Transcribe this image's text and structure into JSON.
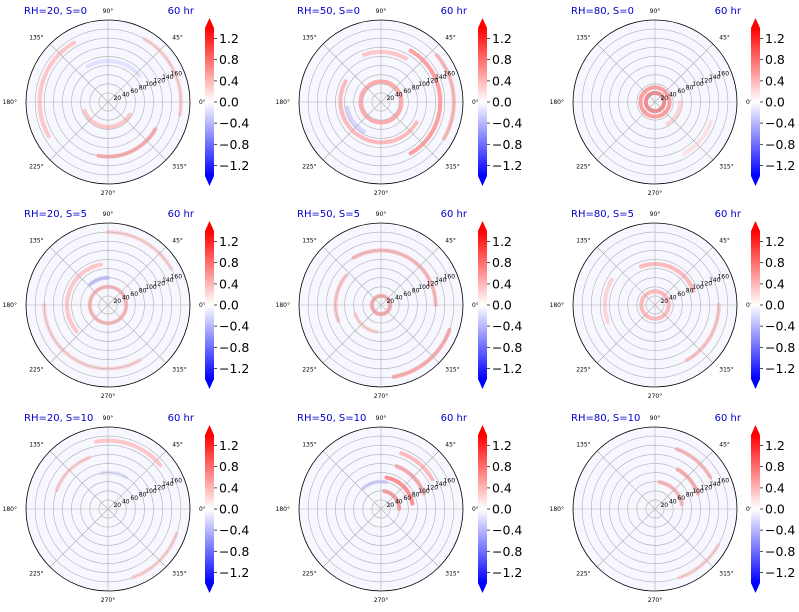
{
  "figure": {
    "time_label": "60 hr",
    "colors": {
      "title": "#0000cc",
      "grid": "#b0b0b0",
      "frame": "#000000",
      "background": "#f7f7ff"
    }
  },
  "colorbar": {
    "ticks": [
      "1.2",
      "0.8",
      "0.4",
      "0.0",
      "−0.4",
      "−0.8",
      "−1.2"
    ],
    "tick_values": [
      1.2,
      0.8,
      0.4,
      0.0,
      -0.4,
      -0.8,
      -1.2
    ],
    "range": [
      -1.4,
      1.4
    ],
    "colormap": "bwr",
    "extend": "both"
  },
  "chart_data": [
    {
      "type": "heatmap",
      "projection": "polar",
      "title": "RH=20, S=0",
      "time": "60 hr",
      "angle_ticks": [
        "0°",
        "45°",
        "90°",
        "135°",
        "180°",
        "225°",
        "270°",
        "315°"
      ],
      "radial_ticks": [
        20,
        40,
        60,
        80,
        100,
        120,
        140,
        160
      ],
      "rmax": 180,
      "features": [
        {
          "r": 55,
          "a0": 200,
          "a1": 330,
          "value": 0.4
        },
        {
          "r": 120,
          "a0": 260,
          "a1": 330,
          "value": 0.6
        },
        {
          "r": 150,
          "a0": 120,
          "a1": 210,
          "value": 0.4
        },
        {
          "r": 160,
          "a0": 350,
          "a1": 420,
          "value": 0.3
        },
        {
          "r": 90,
          "a0": 40,
          "a1": 120,
          "value": -0.2
        }
      ]
    },
    {
      "type": "heatmap",
      "projection": "polar",
      "title": "RH=50, S=0",
      "time": "60 hr",
      "angle_ticks": [
        "0°",
        "45°",
        "90°",
        "135°",
        "180°",
        "225°",
        "270°",
        "315°"
      ],
      "radial_ticks": [
        20,
        40,
        60,
        80,
        100,
        120,
        140,
        160
      ],
      "rmax": 180,
      "features": [
        {
          "r": 45,
          "a0": 0,
          "a1": 360,
          "value": 0.6
        },
        {
          "r": 90,
          "a0": 150,
          "a1": 330,
          "value": 0.5
        },
        {
          "r": 130,
          "a0": 300,
          "a1": 420,
          "value": 0.7
        },
        {
          "r": 160,
          "a0": 330,
          "a1": 400,
          "value": 0.5
        },
        {
          "r": 110,
          "a0": 60,
          "a1": 110,
          "value": 0.4
        },
        {
          "r": 75,
          "a0": 190,
          "a1": 240,
          "value": -0.3
        }
      ]
    },
    {
      "type": "heatmap",
      "projection": "polar",
      "title": "RH=80, S=0",
      "time": "60 hr",
      "angle_ticks": [
        "0°",
        "45°",
        "90°",
        "135°",
        "180°",
        "225°",
        "270°",
        "315°"
      ],
      "radial_ticks": [
        20,
        40,
        60,
        80,
        100,
        120,
        140,
        160
      ],
      "rmax": 180,
      "features": [
        {
          "r": 20,
          "a0": 0,
          "a1": 360,
          "value": 0.9
        },
        {
          "r": 32,
          "a0": 0,
          "a1": 360,
          "value": 0.7
        },
        {
          "r": 55,
          "a0": 300,
          "a1": 360,
          "value": 0.3
        },
        {
          "r": 130,
          "a0": 300,
          "a1": 340,
          "value": 0.2
        }
      ]
    },
    {
      "type": "heatmap",
      "projection": "polar",
      "title": "RH=20, S=5",
      "time": "60 hr",
      "angle_ticks": [
        "0°",
        "45°",
        "90°",
        "135°",
        "180°",
        "225°",
        "270°",
        "315°"
      ],
      "radial_ticks": [
        20,
        40,
        60,
        80,
        100,
        120,
        140,
        160
      ],
      "rmax": 180,
      "features": [
        {
          "r": 40,
          "a0": 0,
          "a1": 360,
          "value": 0.5
        },
        {
          "r": 90,
          "a0": 100,
          "a1": 220,
          "value": 0.4
        },
        {
          "r": 140,
          "a0": 180,
          "a1": 300,
          "value": 0.3
        },
        {
          "r": 160,
          "a0": 30,
          "a1": 90,
          "value": 0.3
        },
        {
          "r": 60,
          "a0": 90,
          "a1": 130,
          "value": -0.4
        }
      ]
    },
    {
      "type": "heatmap",
      "projection": "polar",
      "title": "RH=50, S=5",
      "time": "60 hr",
      "angle_ticks": [
        "0°",
        "45°",
        "90°",
        "135°",
        "180°",
        "225°",
        "270°",
        "315°"
      ],
      "radial_ticks": [
        20,
        40,
        60,
        80,
        100,
        120,
        140,
        160
      ],
      "rmax": 180,
      "features": [
        {
          "r": 20,
          "a0": 0,
          "a1": 360,
          "value": 0.6
        },
        {
          "r": 120,
          "a0": 0,
          "a1": 120,
          "value": 0.5
        },
        {
          "r": 160,
          "a0": 280,
          "a1": 340,
          "value": 0.6
        },
        {
          "r": 100,
          "a0": 140,
          "a1": 200,
          "value": 0.4
        },
        {
          "r": 60,
          "a0": 200,
          "a1": 260,
          "value": 0.3
        }
      ]
    },
    {
      "type": "heatmap",
      "projection": "polar",
      "title": "RH=80, S=5",
      "time": "60 hr",
      "angle_ticks": [
        "0°",
        "45°",
        "90°",
        "135°",
        "180°",
        "225°",
        "270°",
        "315°"
      ],
      "radial_ticks": [
        20,
        40,
        60,
        80,
        100,
        120,
        140,
        160
      ],
      "rmax": 180,
      "features": [
        {
          "r": 30,
          "a0": 0,
          "a1": 360,
          "value": 0.5
        },
        {
          "r": 90,
          "a0": 20,
          "a1": 110,
          "value": 0.5
        },
        {
          "r": 140,
          "a0": 300,
          "a1": 360,
          "value": 0.4
        },
        {
          "r": 110,
          "a0": 150,
          "a1": 200,
          "value": 0.3
        }
      ]
    },
    {
      "type": "heatmap",
      "projection": "polar",
      "title": "RH=20, S=10",
      "time": "60 hr",
      "angle_ticks": [
        "0°",
        "45°",
        "90°",
        "135°",
        "180°",
        "225°",
        "270°",
        "315°"
      ],
      "radial_ticks": [
        20,
        40,
        60,
        80,
        100,
        120,
        140,
        160
      ],
      "rmax": 180,
      "features": [
        {
          "r": 150,
          "a0": 40,
          "a1": 100,
          "value": 0.4
        },
        {
          "r": 120,
          "a0": 110,
          "a1": 160,
          "value": 0.3
        },
        {
          "r": 160,
          "a0": 290,
          "a1": 340,
          "value": 0.3
        },
        {
          "r": 80,
          "a0": 60,
          "a1": 100,
          "value": -0.2
        }
      ]
    },
    {
      "type": "heatmap",
      "projection": "polar",
      "title": "RH=50, S=10",
      "time": "60 hr",
      "angle_ticks": [
        "0°",
        "45°",
        "90°",
        "135°",
        "180°",
        "225°",
        "270°",
        "315°"
      ],
      "radial_ticks": [
        20,
        40,
        60,
        80,
        100,
        120,
        140,
        160
      ],
      "rmax": 180,
      "features": [
        {
          "r": 40,
          "a0": 0,
          "a1": 80,
          "value": 0.7
        },
        {
          "r": 70,
          "a0": 10,
          "a1": 80,
          "value": 0.8
        },
        {
          "r": 100,
          "a0": 20,
          "a1": 70,
          "value": 0.6
        },
        {
          "r": 130,
          "a0": 30,
          "a1": 70,
          "value": 0.5
        },
        {
          "r": 60,
          "a0": 80,
          "a1": 130,
          "value": -0.3
        }
      ]
    },
    {
      "type": "heatmap",
      "projection": "polar",
      "title": "RH=80, S=10",
      "time": "60 hr",
      "angle_ticks": [
        "0°",
        "45°",
        "90°",
        "135°",
        "180°",
        "225°",
        "270°",
        "315°"
      ],
      "radial_ticks": [
        20,
        40,
        60,
        80,
        100,
        120,
        140,
        160
      ],
      "rmax": 180,
      "features": [
        {
          "r": 60,
          "a0": 10,
          "a1": 80,
          "value": 0.5
        },
        {
          "r": 100,
          "a0": 20,
          "a1": 60,
          "value": 0.6
        },
        {
          "r": 140,
          "a0": 30,
          "a1": 70,
          "value": 0.5
        },
        {
          "r": 160,
          "a0": 290,
          "a1": 330,
          "value": 0.3
        }
      ]
    }
  ]
}
